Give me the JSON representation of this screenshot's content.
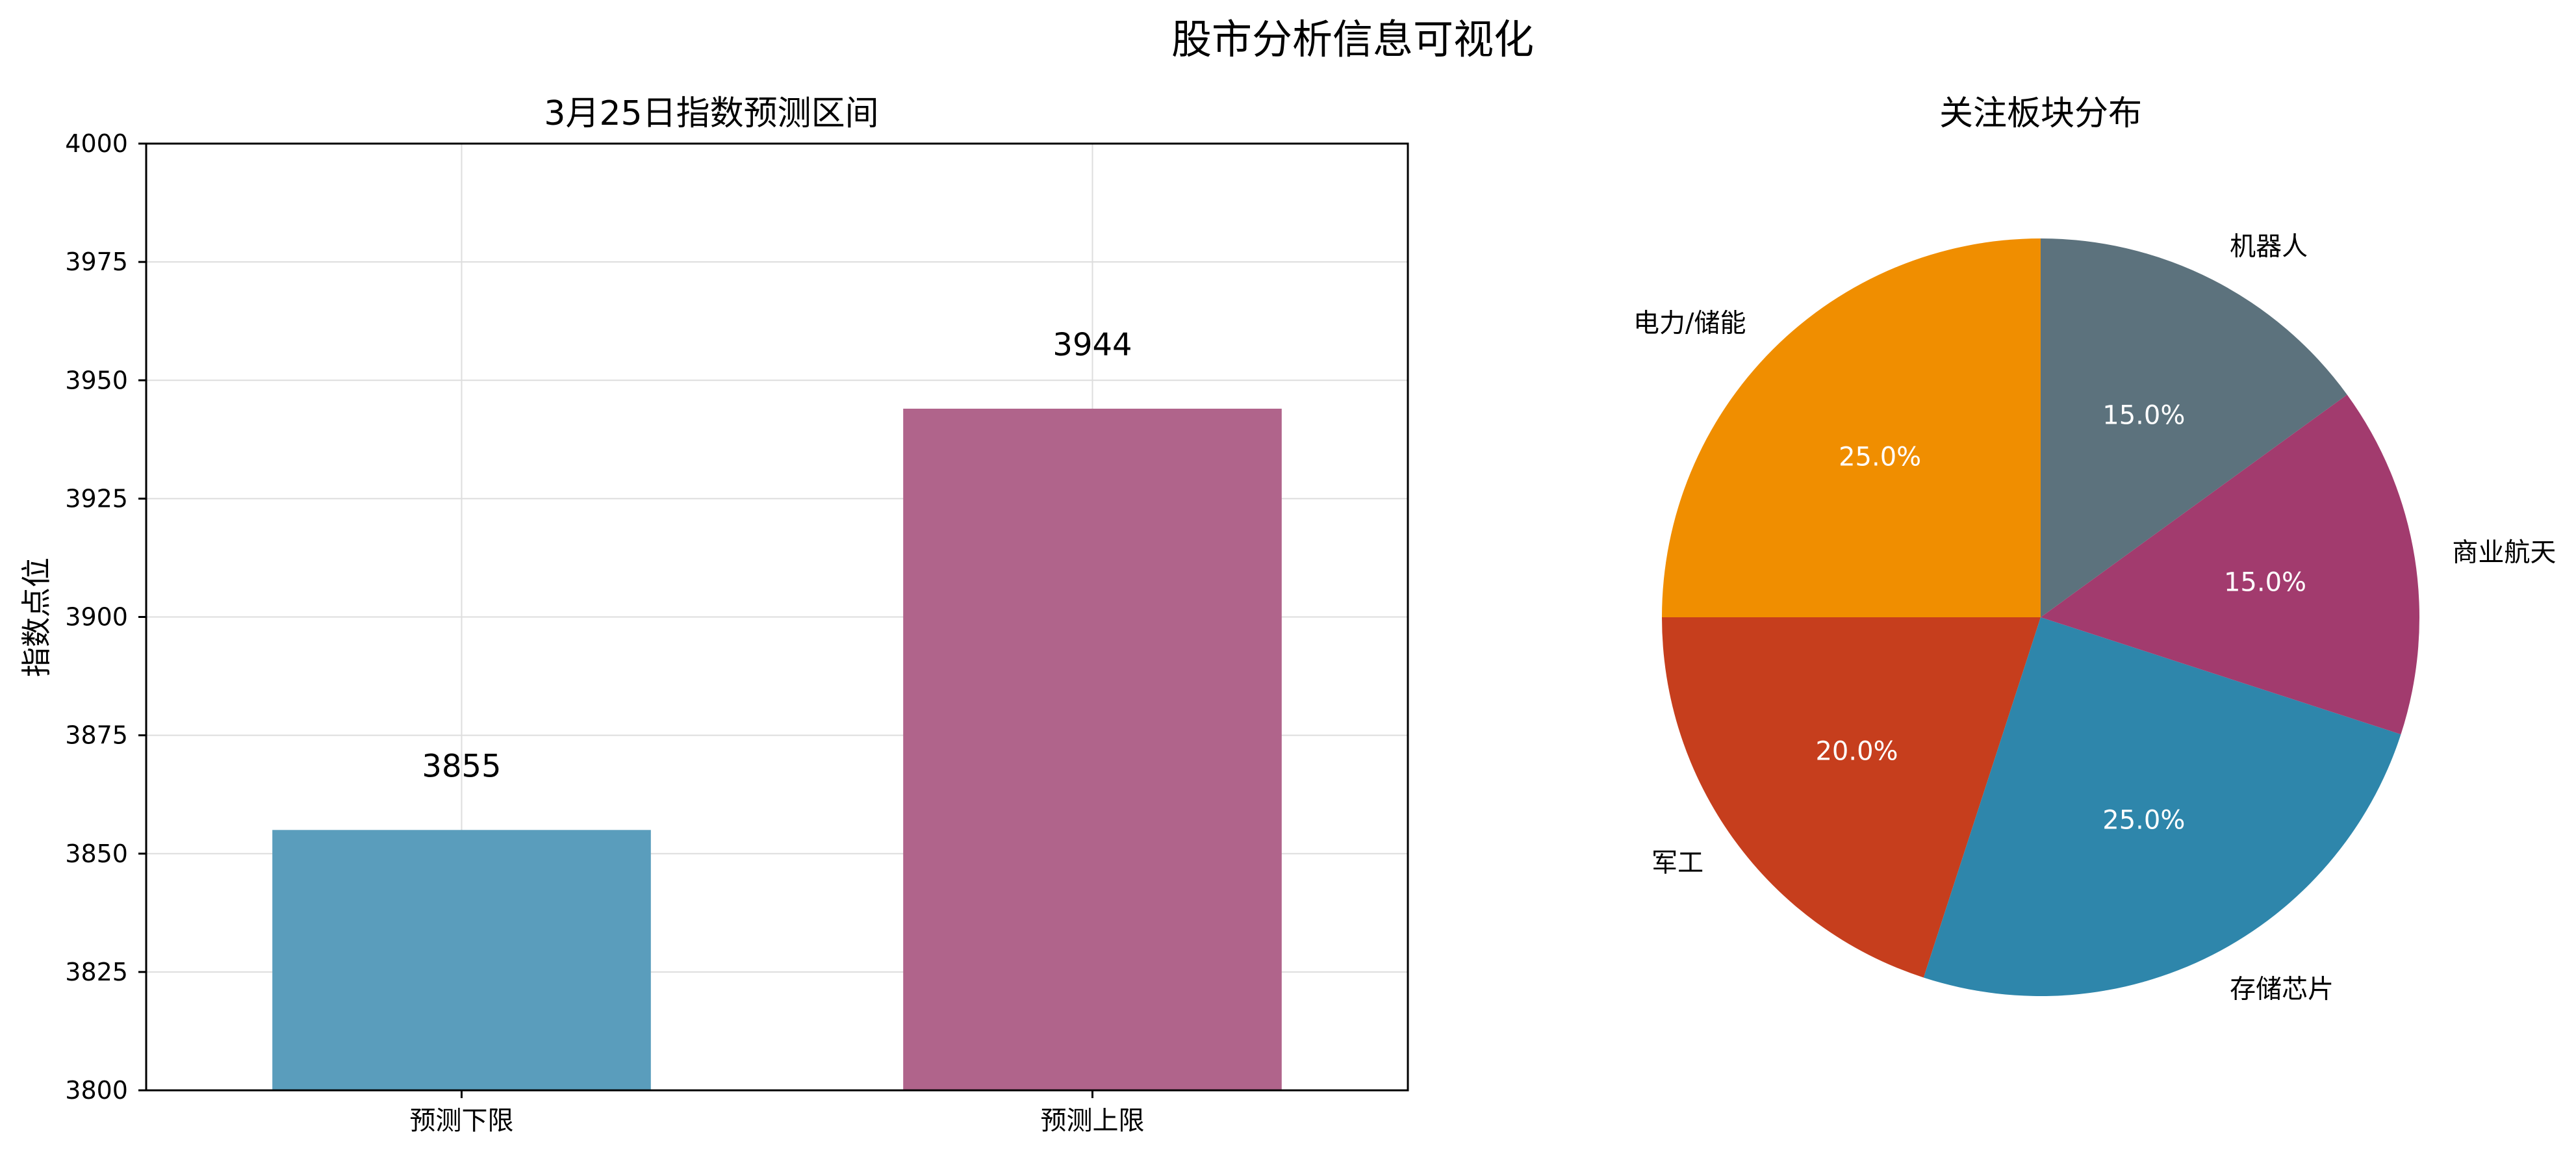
{
  "figure": {
    "title": "股市分析信息可视化"
  },
  "chart_data": [
    {
      "type": "bar",
      "title": "3月25日指数预测区间",
      "xlabel": "",
      "ylabel": "指数点位",
      "categories": [
        "预测下限",
        "预测上限"
      ],
      "values": [
        3855,
        3944
      ],
      "value_labels": [
        "3855",
        "3944"
      ],
      "ylim": [
        3800,
        4000
      ],
      "yticks": [
        3800,
        3825,
        3850,
        3875,
        3900,
        3925,
        3950,
        3975,
        4000
      ],
      "grid": true,
      "colors": [
        "#5a9dbc",
        "#b0648b"
      ]
    },
    {
      "type": "pie",
      "title": "关注板块分布",
      "labels": [
        "电力/储能",
        "军工",
        "存储芯片",
        "商业航天",
        "机器人"
      ],
      "values": [
        25,
        20,
        25,
        15,
        15
      ],
      "pct_labels": [
        "25.0%",
        "20.0%",
        "25.0%",
        "15.0%",
        "15.0%"
      ],
      "colors": [
        "#f08e00",
        "#c63e1d",
        "#2e86ab",
        "#a23b6e",
        "#5c727d"
      ],
      "start_angle": 90,
      "direction": "counterclockwise"
    }
  ]
}
